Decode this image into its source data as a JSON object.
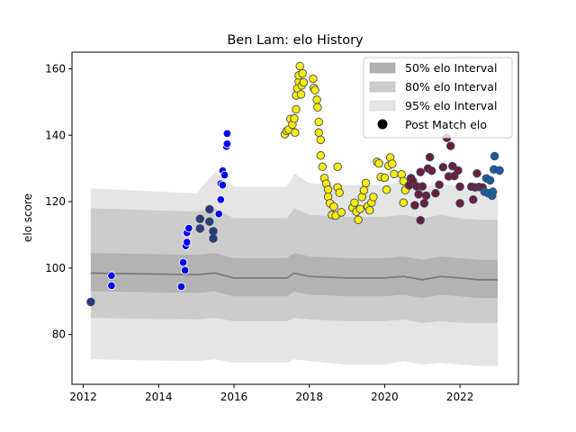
{
  "chart_data": {
    "type": "scatter",
    "title": "Ben Lam: elo History",
    "xlabel": "",
    "ylabel": "elo score",
    "xlim": [
      2011.7,
      2023.55
    ],
    "ylim": [
      65,
      165
    ],
    "xticks": [
      2012,
      2014,
      2016,
      2018,
      2020,
      2022
    ],
    "yticks": [
      80,
      100,
      120,
      140,
      160
    ],
    "grid": false,
    "legend_position": "top-right",
    "legend": [
      {
        "label": "50% elo Interval",
        "color": "#b0b0b0"
      },
      {
        "label": "80% elo Interval",
        "color": "#cccccc"
      },
      {
        "label": "95% elo Interval",
        "color": "#e5e5e5"
      },
      {
        "label": "Post Match elo",
        "color": "#000000"
      }
    ],
    "bands": {
      "x": [
        2012.2,
        2015.0,
        2015.5,
        2016.0,
        2017.4,
        2017.6,
        2018.0,
        2019.0,
        2020.0,
        2020.5,
        2021.0,
        2021.5,
        2022.0,
        2022.5,
        2023.0
      ],
      "median": [
        98.5,
        98.0,
        98.5,
        97.0,
        97.0,
        98.5,
        97.5,
        97.0,
        97.0,
        97.5,
        96.5,
        97.5,
        97.0,
        96.5,
        96.5
      ],
      "p50_low": [
        93.0,
        92.5,
        93.0,
        91.5,
        91.5,
        93.0,
        92.0,
        91.5,
        91.5,
        92.0,
        91.0,
        92.0,
        91.5,
        91.0,
        91.0
      ],
      "p50_high": [
        104.5,
        104.0,
        104.5,
        103.0,
        103.0,
        104.5,
        103.5,
        103.0,
        103.0,
        103.5,
        102.5,
        103.5,
        103.0,
        102.5,
        102.5
      ],
      "p80_low": [
        85.0,
        84.5,
        85.0,
        84.0,
        84.0,
        85.0,
        84.5,
        84.0,
        84.0,
        84.5,
        83.5,
        84.0,
        83.5,
        83.5,
        83.5
      ],
      "p80_high": [
        118.0,
        117.0,
        118.0,
        115.0,
        115.0,
        118.0,
        116.0,
        115.5,
        115.5,
        116.0,
        115.0,
        116.0,
        115.0,
        114.5,
        114.5
      ],
      "p95_low": [
        72.5,
        72.0,
        72.5,
        71.5,
        71.5,
        72.5,
        72.0,
        71.0,
        71.0,
        72.0,
        71.0,
        71.5,
        71.0,
        70.5,
        70.5
      ],
      "p95_high": [
        124.0,
        122.5,
        129.0,
        124.5,
        124.5,
        128.5,
        125.5,
        125.0,
        125.0,
        126.0,
        124.5,
        125.5,
        124.5,
        123.5,
        123.5
      ]
    },
    "series": [
      {
        "color": "#2a3b7a",
        "points": [
          [
            2012.2,
            89.8
          ],
          [
            2015.1,
            114.8
          ],
          [
            2015.1,
            111.9
          ],
          [
            2015.35,
            117.7
          ],
          [
            2015.35,
            114.0
          ],
          [
            2015.45,
            111.1
          ],
          [
            2015.45,
            108.9
          ]
        ]
      },
      {
        "color": "#0000ee",
        "points": [
          [
            2012.75,
            97.7
          ],
          [
            2012.75,
            94.7
          ],
          [
            2014.6,
            94.4
          ],
          [
            2014.65,
            101.7
          ],
          [
            2014.7,
            99.3
          ],
          [
            2014.72,
            106.7
          ],
          [
            2014.75,
            107.8
          ],
          [
            2014.75,
            110.6
          ],
          [
            2014.8,
            112.0
          ],
          [
            2015.6,
            116.3
          ],
          [
            2015.65,
            120.6
          ],
          [
            2015.65,
            125.4
          ],
          [
            2015.7,
            129.3
          ],
          [
            2015.7,
            125.0
          ],
          [
            2015.75,
            128.0
          ],
          [
            2015.8,
            136.6
          ],
          [
            2015.82,
            137.4
          ],
          [
            2015.82,
            140.5
          ]
        ]
      },
      {
        "color": "#ffee00",
        "points": [
          [
            2017.35,
            140.3
          ],
          [
            2017.4,
            141.3
          ],
          [
            2017.45,
            141.7
          ],
          [
            2017.5,
            144.9
          ],
          [
            2017.55,
            143.2
          ],
          [
            2017.6,
            145.0
          ],
          [
            2017.62,
            140.8
          ],
          [
            2017.65,
            147.8
          ],
          [
            2017.65,
            152.0
          ],
          [
            2017.68,
            154.1
          ],
          [
            2017.72,
            156.1
          ],
          [
            2017.72,
            158.0
          ],
          [
            2017.75,
            160.8
          ],
          [
            2017.78,
            152.3
          ],
          [
            2017.8,
            155.0
          ],
          [
            2017.82,
            158.6
          ],
          [
            2017.85,
            155.9
          ],
          [
            2018.1,
            157.0
          ],
          [
            2018.12,
            154.2
          ],
          [
            2018.15,
            153.6
          ],
          [
            2018.2,
            150.7
          ],
          [
            2018.22,
            148.4
          ],
          [
            2018.25,
            144.0
          ],
          [
            2018.25,
            140.8
          ],
          [
            2018.3,
            138.6
          ],
          [
            2018.3,
            133.9
          ],
          [
            2018.35,
            130.5
          ],
          [
            2018.4,
            127.1
          ],
          [
            2018.45,
            125.4
          ],
          [
            2018.5,
            123.6
          ],
          [
            2018.5,
            121.5
          ],
          [
            2018.55,
            119.5
          ],
          [
            2018.6,
            116.0
          ],
          [
            2018.65,
            118.5
          ],
          [
            2018.7,
            115.8
          ],
          [
            2018.75,
            130.5
          ],
          [
            2018.75,
            124.3
          ],
          [
            2018.8,
            122.7
          ],
          [
            2018.85,
            116.8
          ],
          [
            2019.15,
            118.2
          ],
          [
            2019.2,
            119.7
          ],
          [
            2019.25,
            117.0
          ],
          [
            2019.3,
            114.5
          ],
          [
            2019.35,
            117.8
          ],
          [
            2019.4,
            121.4
          ],
          [
            2019.45,
            123.4
          ],
          [
            2019.5,
            125.6
          ],
          [
            2019.55,
            118.6
          ],
          [
            2019.6,
            117.4
          ],
          [
            2019.65,
            119.7
          ],
          [
            2019.7,
            121.4
          ],
          [
            2019.8,
            132.0
          ],
          [
            2019.85,
            131.5
          ],
          [
            2019.9,
            127.4
          ],
          [
            2020.0,
            127.2
          ],
          [
            2020.05,
            123.6
          ],
          [
            2020.15,
            133.3
          ],
          [
            2020.1,
            130.8
          ],
          [
            2020.2,
            131.4
          ],
          [
            2020.25,
            128.3
          ],
          [
            2020.45,
            128.2
          ],
          [
            2020.5,
            126.2
          ],
          [
            2020.55,
            123.5
          ],
          [
            2020.5,
            119.7
          ]
        ]
      },
      {
        "color": "#6b1f3a",
        "points": [
          [
            2020.65,
            124.9
          ],
          [
            2020.7,
            127.1
          ],
          [
            2020.75,
            126.2
          ],
          [
            2020.8,
            118.9
          ],
          [
            2020.85,
            124.6
          ],
          [
            2020.9,
            122.2
          ],
          [
            2020.95,
            128.9
          ],
          [
            2020.95,
            114.4
          ],
          [
            2021.0,
            124.6
          ],
          [
            2021.05,
            119.5
          ],
          [
            2021.1,
            121.8
          ],
          [
            2021.15,
            130.0
          ],
          [
            2021.2,
            133.4
          ],
          [
            2021.25,
            129.3
          ],
          [
            2021.35,
            122.5
          ],
          [
            2021.45,
            125.1
          ],
          [
            2021.55,
            130.4
          ],
          [
            2021.65,
            139.2
          ],
          [
            2021.7,
            127.6
          ],
          [
            2021.75,
            136.8
          ],
          [
            2021.8,
            130.7
          ],
          [
            2021.85,
            127.7
          ],
          [
            2021.95,
            129.4
          ],
          [
            2022.0,
            124.5
          ],
          [
            2022.0,
            119.5
          ],
          [
            2022.3,
            124.5
          ],
          [
            2022.35,
            120.6
          ],
          [
            2022.4,
            124.3
          ],
          [
            2022.45,
            128.5
          ],
          [
            2022.5,
            124.4
          ],
          [
            2022.6,
            124.3
          ]
        ]
      },
      {
        "color": "#1b5f9e",
        "points": [
          [
            2022.65,
            123.0
          ],
          [
            2022.7,
            127.0
          ],
          [
            2022.75,
            122.5
          ],
          [
            2022.8,
            126.4
          ],
          [
            2022.85,
            121.8
          ],
          [
            2022.87,
            123.0
          ],
          [
            2022.9,
            129.7
          ],
          [
            2022.92,
            133.7
          ],
          [
            2023.05,
            129.4
          ]
        ]
      }
    ]
  }
}
